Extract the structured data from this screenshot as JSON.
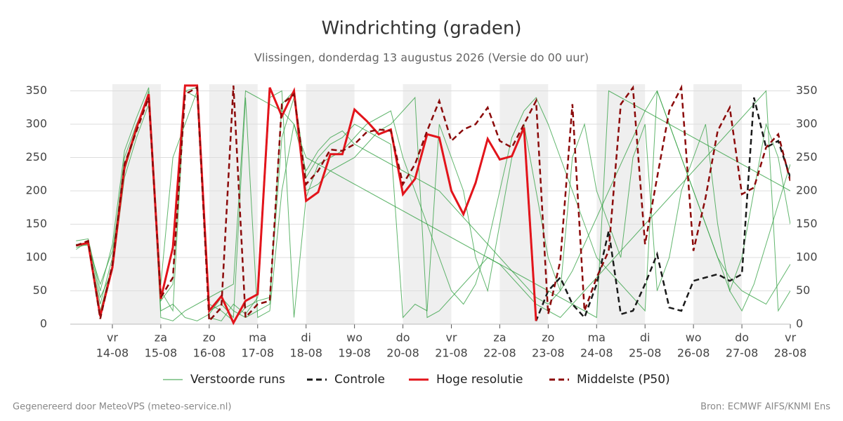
{
  "chart_data": {
    "type": "line",
    "title": "Windrichting (graden)",
    "subtitle": "Vlissingen, donderdag 13 augustus 2026 (Versie do 00 uur)",
    "footer_left": "Gegenereerd door MeteoVPS (meteo-service.nl)",
    "footer_right": "Bron: ECMWF AIFS/KNMI Ens",
    "xlim": [
      13.13,
      28
    ],
    "ylim": [
      0,
      360
    ],
    "yticks": [
      0,
      50,
      100,
      150,
      200,
      250,
      300,
      350
    ],
    "xticks": [
      {
        "value": 14,
        "label": [
          "vr",
          "14-08"
        ]
      },
      {
        "value": 15,
        "label": [
          "za",
          "15-08"
        ]
      },
      {
        "value": 16,
        "label": [
          "zo",
          "16-08"
        ]
      },
      {
        "value": 17,
        "label": [
          "ma",
          "17-08"
        ]
      },
      {
        "value": 18,
        "label": [
          "di",
          "18-08"
        ]
      },
      {
        "value": 19,
        "label": [
          "wo",
          "19-08"
        ]
      },
      {
        "value": 20,
        "label": [
          "do",
          "20-08"
        ]
      },
      {
        "value": 21,
        "label": [
          "vr",
          "21-08"
        ]
      },
      {
        "value": 22,
        "label": [
          "za",
          "22-08"
        ]
      },
      {
        "value": 23,
        "label": [
          "zo",
          "23-08"
        ]
      },
      {
        "value": 24,
        "label": [
          "ma",
          "24-08"
        ]
      },
      {
        "value": 25,
        "label": [
          "di",
          "25-08"
        ]
      },
      {
        "value": 26,
        "label": [
          "wo",
          "26-08"
        ]
      },
      {
        "value": 27,
        "label": [
          "do",
          "27-08"
        ]
      },
      {
        "value": 28,
        "label": [
          "vr",
          "28-08"
        ]
      }
    ],
    "grid": true,
    "x": [
      13.25,
      13.5,
      13.75,
      14,
      14.25,
      14.5,
      14.75,
      15,
      15.25,
      15.5,
      15.75,
      16,
      16.25,
      16.5,
      16.75,
      17,
      17.25,
      17.5,
      17.75,
      18,
      18.25,
      18.5,
      18.75,
      19,
      19.25,
      19.5,
      19.75,
      20,
      20.25,
      20.5,
      20.75,
      21,
      21.25,
      21.5,
      21.75,
      22,
      22.25,
      22.5,
      22.75,
      23,
      23.25,
      23.5,
      23.75,
      24,
      24.25,
      24.5,
      24.75,
      25,
      25.25,
      25.5,
      25.75,
      26,
      26.25,
      26.5,
      26.75,
      27,
      27.25,
      27.5,
      27.75,
      28
    ],
    "ensemble": {
      "name": "Verstoorde runs",
      "color": "#2e9e3e",
      "members": [
        [
          115,
          120,
          30,
          100,
          250,
          300,
          340,
          20,
          30,
          10,
          5,
          15,
          40,
          20,
          10,
          20,
          30,
          330,
          350,
          220,
          250,
          270,
          280,
          300,
          290,
          280,
          270,
          10,
          30,
          20,
          300,
          250,
          200,
          100,
          50,
          150,
          250,
          300,
          200,
          100,
          50,
          250,
          300,
          200,
          150,
          100,
          250,
          300,
          50,
          100,
          200,
          250,
          300,
          150,
          50,
          100,
          200,
          300,
          250,
          150
        ],
        [
          120,
          118,
          60,
          110,
          230,
          290,
          350,
          50,
          20,
          350,
          340,
          10,
          5,
          30,
          15,
          40,
          340,
          350,
          10,
          190,
          240,
          250,
          260,
          280,
          300,
          310,
          320,
          250,
          200,
          150,
          100,
          50,
          30,
          60,
          120,
          200,
          280,
          320,
          340,
          300,
          250,
          200,
          150,
          100,
          80,
          60,
          40,
          20,
          350,
          300,
          250,
          200,
          150,
          100,
          50,
          20,
          60,
          120,
          180,
          240
        ],
        [
          112,
          125,
          40,
          80,
          220,
          280,
          330,
          60,
          250,
          300,
          350,
          20,
          30,
          10,
          340,
          10,
          20,
          200,
          300,
          230,
          260,
          280,
          290,
          270,
          260,
          250,
          240,
          230,
          220,
          210,
          200,
          180,
          160,
          140,
          120,
          100,
          80,
          60,
          40,
          30,
          50,
          80,
          120,
          160,
          200,
          240,
          280,
          320,
          350,
          300,
          250,
          200,
          150,
          100,
          70,
          50,
          40,
          30,
          60,
          90
        ],
        [
          118,
          122,
          20,
          90,
          240,
          295,
          345,
          35,
          60,
          350,
          355,
          30,
          20,
          5,
          25,
          35,
          40,
          280,
          340,
          200,
          210,
          230,
          240,
          250,
          270,
          290,
          300,
          320,
          340,
          10,
          20,
          40,
          60,
          80,
          100,
          90,
          70,
          50,
          30,
          20,
          10,
          30,
          50,
          70,
          90,
          110,
          130,
          150,
          170,
          190,
          210,
          230,
          250,
          270,
          290,
          310,
          330,
          350,
          20,
          50
        ],
        [
          125,
          128,
          50,
          120,
          260,
          310,
          355,
          10,
          5,
          20,
          30,
          40,
          50,
          60,
          350,
          340,
          330,
          320,
          300,
          250,
          240,
          230,
          220,
          210,
          200,
          190,
          180,
          170,
          160,
          150,
          140,
          130,
          120,
          110,
          100,
          90,
          80,
          70,
          60,
          50,
          40,
          30,
          20,
          10,
          350,
          340,
          330,
          320,
          310,
          300,
          290,
          280,
          270,
          260,
          250,
          240,
          230,
          220,
          210,
          200
        ]
      ]
    },
    "series": [
      {
        "name": "Controle",
        "color": "#1a1a1a",
        "dash": true,
        "values": [
          118,
          122,
          12,
          85,
          235,
          295,
          345,
          38,
          115,
          358,
          358,
          20,
          42,
          2,
          35,
          45,
          355,
          312,
          350,
          185,
          198,
          255,
          255,
          322,
          305,
          285,
          292,
          195,
          218,
          285,
          280,
          200,
          165,
          212,
          278,
          247,
          252,
          295,
          5,
          50,
          70,
          30,
          10,
          60,
          140,
          15,
          20,
          60,
          105,
          25,
          20,
          65,
          70,
          75,
          65,
          75,
          340,
          265,
          275,
          220
        ]
      },
      {
        "name": "Hoge resolutie",
        "color": "#e3141b",
        "dash": false,
        "values": [
          118,
          122,
          12,
          85,
          235,
          295,
          345,
          38,
          115,
          358,
          358,
          20,
          42,
          2,
          35,
          45,
          355,
          312,
          350,
          185,
          198,
          255,
          255,
          322,
          305,
          285,
          292,
          195,
          218,
          285,
          280,
          200,
          165,
          212,
          278,
          247,
          252,
          295,
          5,
          null,
          null,
          null,
          null,
          null,
          null,
          null,
          null,
          null,
          null,
          null,
          null,
          null,
          null,
          null,
          null,
          null,
          null,
          null,
          null,
          null
        ]
      },
      {
        "name": "Middelste (P50)",
        "color": "#8b0a0a",
        "dash": true,
        "values": [
          118,
          125,
          8,
          90,
          240,
          290,
          340,
          40,
          70,
          345,
          355,
          5,
          25,
          358,
          10,
          30,
          35,
          330,
          345,
          210,
          230,
          262,
          260,
          270,
          288,
          292,
          290,
          210,
          240,
          290,
          335,
          275,
          292,
          300,
          325,
          275,
          265,
          300,
          335,
          15,
          95,
          330,
          20,
          70,
          110,
          330,
          355,
          120,
          220,
          320,
          355,
          110,
          190,
          290,
          325,
          195,
          205,
          265,
          285,
          215
        ]
      }
    ]
  }
}
